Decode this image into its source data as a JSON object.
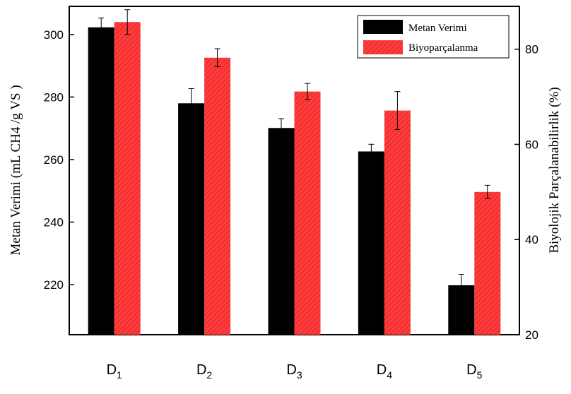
{
  "chart_data": {
    "type": "bar",
    "categories": [
      {
        "base": "D",
        "sub": "1"
      },
      {
        "base": "D",
        "sub": "2"
      },
      {
        "base": "D",
        "sub": "3"
      },
      {
        "base": "D",
        "sub": "4"
      },
      {
        "base": "D",
        "sub": "5"
      }
    ],
    "left_axis": {
      "label": "Metan Verimi (mL CH4 /g VS  )",
      "range": [
        204,
        309
      ],
      "ticks": [
        220,
        240,
        260,
        280,
        300
      ]
    },
    "right_axis": {
      "label": "Biyolojik Parçalanabilirlik  (%)",
      "range": [
        20,
        89
      ],
      "ticks": [
        20,
        40,
        60,
        80
      ]
    },
    "series": [
      {
        "name": "Metan Verimi",
        "axis": "left",
        "color": "#000000",
        "values": [
          302.3,
          278.0,
          270.1,
          262.6,
          219.8
        ],
        "errors": [
          3.0,
          4.7,
          3.0,
          2.3,
          3.5
        ]
      },
      {
        "name": "Biyoparçalanma",
        "axis": "right",
        "color": "#ff3b3b",
        "hatch": "#c81818",
        "values": [
          85.7,
          78.2,
          71.1,
          67.1,
          50.0
        ],
        "errors": [
          2.6,
          1.9,
          1.7,
          4.0,
          1.4
        ]
      }
    ],
    "legend_position": "top-right",
    "grid": false
  }
}
